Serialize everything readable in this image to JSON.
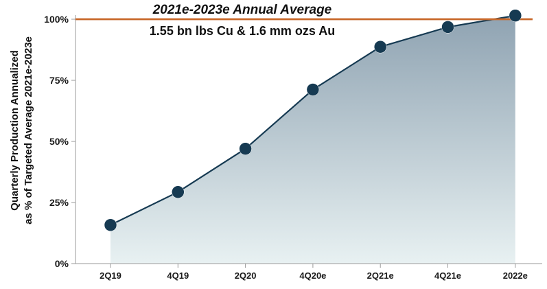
{
  "chart_data": {
    "type": "area",
    "categories": [
      "2Q19",
      "4Q19",
      "2Q20",
      "4Q20e",
      "2Q21e",
      "4Q21e",
      "2022e"
    ],
    "series": [
      {
        "values": [
          15.8,
          29.3,
          47.0,
          71.2,
          88.7,
          96.8,
          101.5
        ]
      }
    ],
    "ylim": [
      0,
      100
    ],
    "yticks": [
      0,
      25,
      50,
      75,
      100
    ],
    "ytick_labels": [
      "0%",
      "25%",
      "50%",
      "75%",
      "100%"
    ],
    "ylabel_lines": [
      "Quarterly Production Annualized",
      "as % of Targeted Average 2021e-2023e"
    ],
    "xlabel": "",
    "grid": false,
    "legend": "none",
    "reference_line": {
      "value": 100,
      "color": "#c8692b"
    },
    "annotation": {
      "title": "2021e-2023e Annual Average",
      "subtitle": "1.55 bn lbs Cu & 1.6 mm ozs Au"
    },
    "colors": {
      "line": "#163a52",
      "marker": "#163a52",
      "area_top": "#8fa3b2",
      "area_bottom": "#e8f1f2",
      "axis": "#9a9a9a"
    }
  }
}
